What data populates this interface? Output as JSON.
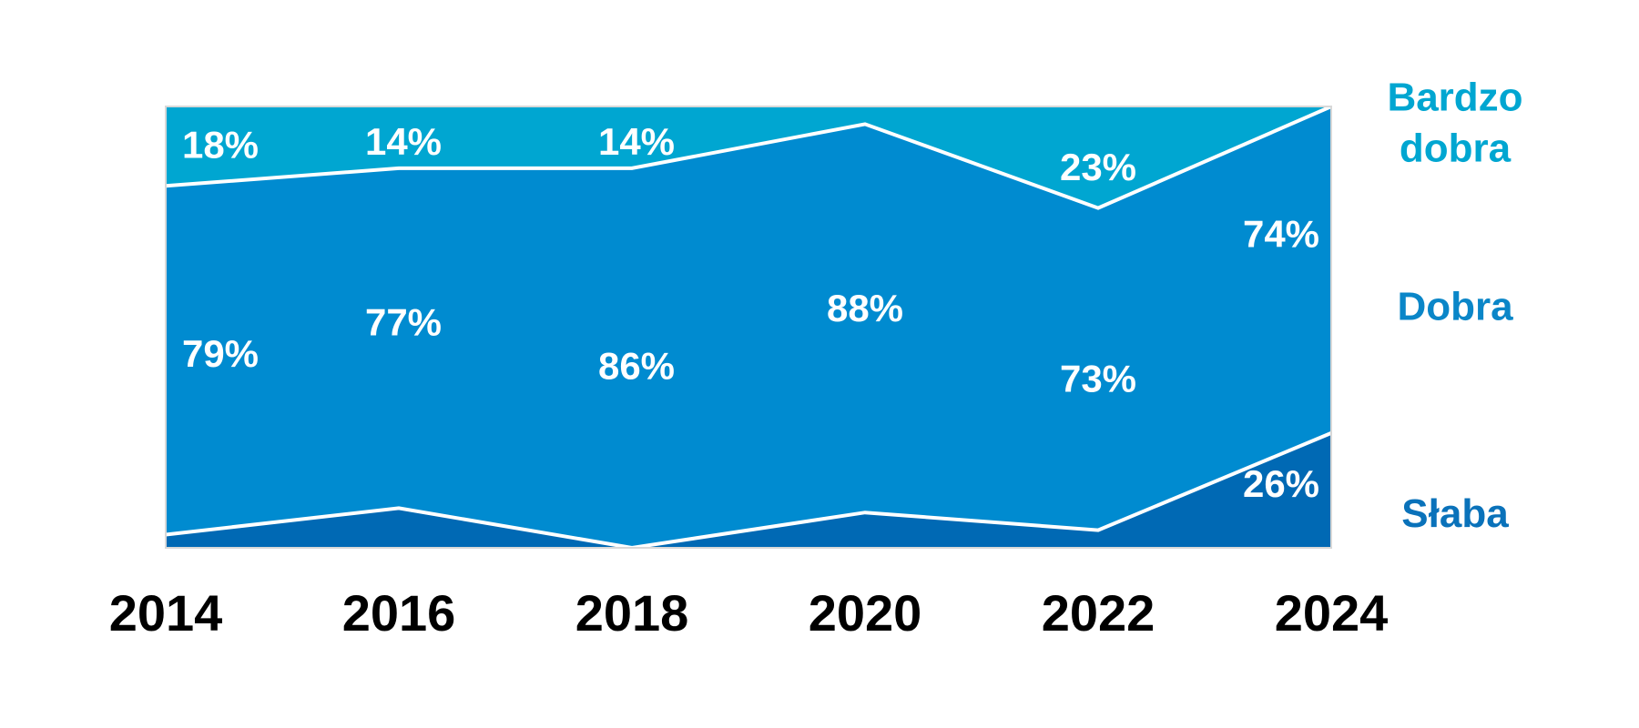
{
  "chart_data": {
    "type": "area",
    "stacked": true,
    "percent": true,
    "x": [
      "2014",
      "2016",
      "2018",
      "2020",
      "2022",
      "2024"
    ],
    "ylim": [
      0,
      100
    ],
    "series": [
      {
        "name": "Słaba",
        "values": [
          3,
          9,
          0,
          8,
          4,
          26
        ],
        "color": "#0069b4"
      },
      {
        "name": "Dobra",
        "values": [
          79,
          77,
          86,
          88,
          73,
          74
        ],
        "color": "#008bd0"
      },
      {
        "name": "Bardzo dobra",
        "values": [
          18,
          14,
          14,
          4,
          23,
          0
        ],
        "color": "#00a6d1"
      }
    ],
    "data_labels": [
      {
        "series": 2,
        "x": "2014",
        "text": "18%"
      },
      {
        "series": 2,
        "x": "2016",
        "text": "14%"
      },
      {
        "series": 2,
        "x": "2018",
        "text": "14%"
      },
      {
        "series": 2,
        "x": "2022",
        "text": "23%"
      },
      {
        "series": 1,
        "x": "2014",
        "text": "79%"
      },
      {
        "series": 1,
        "x": "2016",
        "text": "77%"
      },
      {
        "series": 1,
        "x": "2018",
        "text": "86%"
      },
      {
        "series": 1,
        "x": "2020",
        "text": "88%"
      },
      {
        "series": 1,
        "x": "2022",
        "text": "73%"
      },
      {
        "series": 1,
        "x": "2024",
        "text": "74%"
      },
      {
        "series": 0,
        "x": "2024",
        "text": "26%"
      }
    ],
    "legend": {
      "placement": "right",
      "entries": [
        {
          "lines": [
            "Bardzo",
            "dobra"
          ],
          "color": "#00a6d1"
        },
        {
          "lines": [
            "Dobra"
          ],
          "color": "#0a86c8"
        },
        {
          "lines": [
            "Słaba"
          ],
          "color": "#0a72ba"
        }
      ]
    },
    "grid": false,
    "title": "",
    "xlabel": "",
    "ylabel": ""
  }
}
